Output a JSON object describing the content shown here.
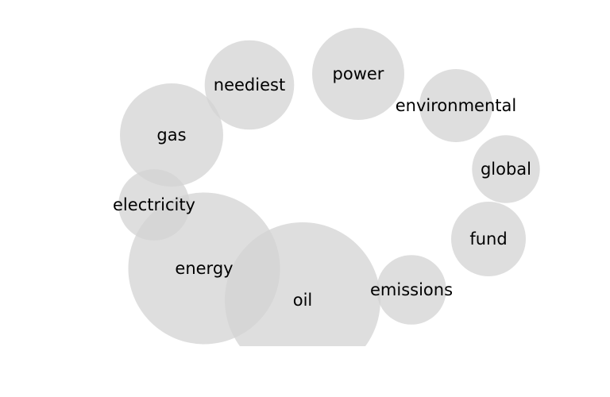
{
  "chart_data": {
    "type": "bubble",
    "title": "",
    "xlabel": "",
    "ylabel": "",
    "grid": false,
    "bubble_color": "#d3d3d3",
    "label_color": "#000000",
    "items": [
      {
        "label": "oil",
        "value": 100
      },
      {
        "label": "energy",
        "value": 95
      },
      {
        "label": "gas",
        "value": 44
      },
      {
        "label": "power",
        "value": 35
      },
      {
        "label": "neediest",
        "value": 33
      },
      {
        "label": "emissions",
        "value": 20
      },
      {
        "label": "environmental",
        "value": 22
      },
      {
        "label": "electricity",
        "value": 21
      },
      {
        "label": "fund",
        "value": 23
      },
      {
        "label": "global",
        "value": 19
      }
    ]
  }
}
